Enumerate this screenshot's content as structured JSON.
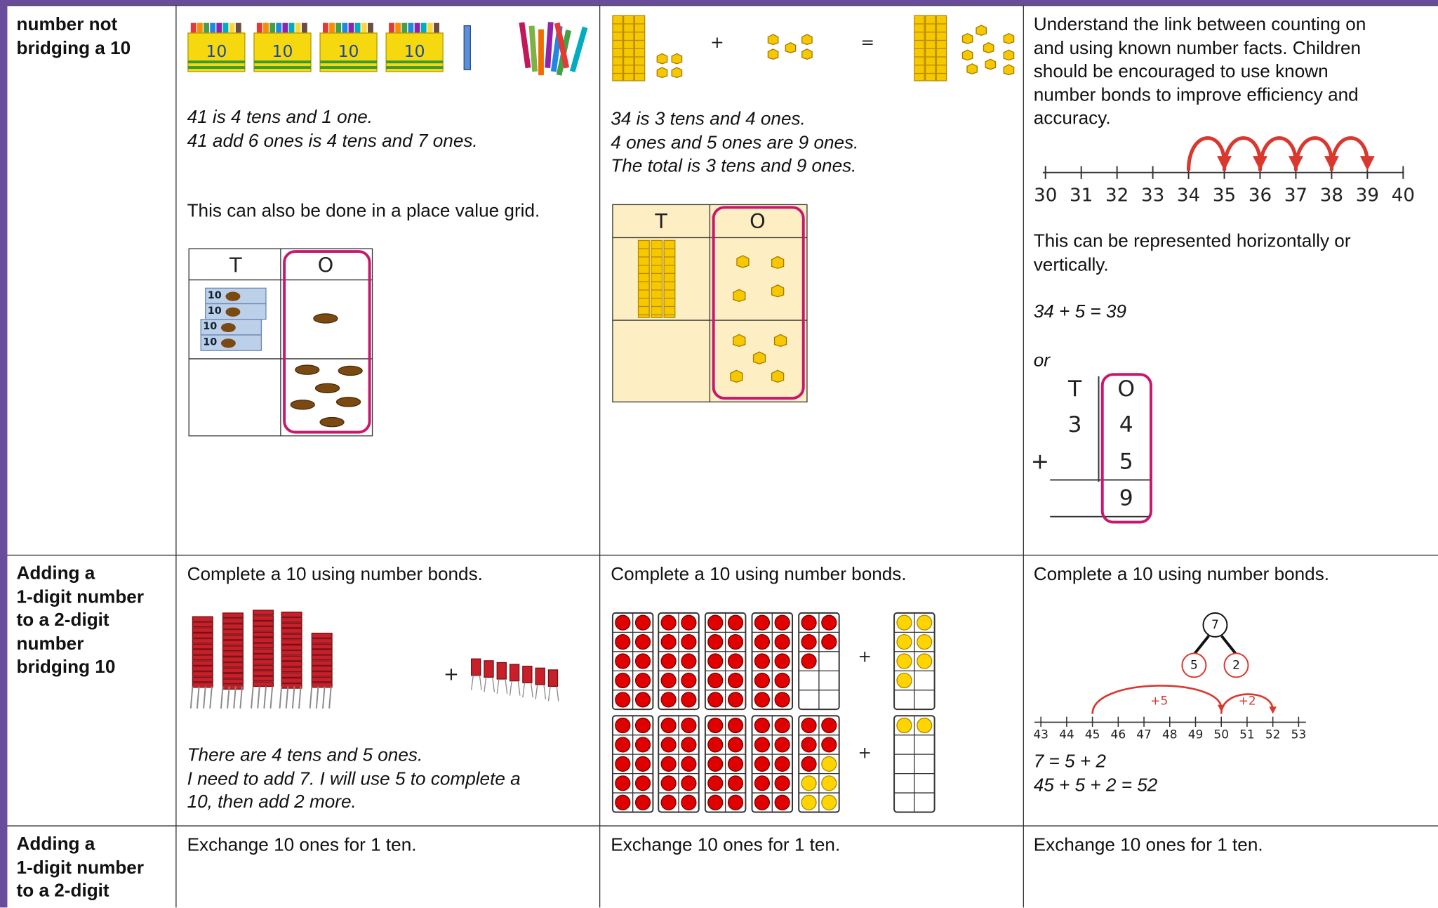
{
  "table": {
    "rows": [
      {
        "heading": [
          "number not",
          "bridging a 10"
        ],
        "cells": [
          {
            "crayon_labels": [
              "10",
              "10",
              "10",
              "10"
            ],
            "lines": [
              "41 is 4 tens and 1 one.",
              "41 add 6 ones is 4 tens and 7 ones."
            ],
            "note": "This can also be done in a place value grid.",
            "grid_headers": [
              "T",
              "O"
            ],
            "box_labels": [
              "10",
              "10",
              "10",
              "10"
            ]
          },
          {
            "operators": [
              "+",
              "="
            ],
            "lines": [
              "34 is 3 tens and 4 ones.",
              "4 ones and 5 ones are 9 ones.",
              "The total is 3 tens and 9 ones."
            ],
            "grid_headers": [
              "T",
              "O"
            ]
          },
          {
            "text": [
              "Understand the link between counting on",
              "and using known number facts. Children",
              "should be encouraged to use known",
              "number bonds to improve efficiency and",
              "accuracy."
            ],
            "number_line": [
              "30",
              "31",
              "32",
              "33",
              "34",
              "35",
              "36",
              "37",
              "38",
              "39",
              "40"
            ],
            "note": [
              "This can be represented horizontally or",
              "vertically."
            ],
            "equation": "34 + 5 = 39",
            "or": "or",
            "column": {
              "headers": [
                "T",
                "O"
              ],
              "tens": "3",
              "sign": "+",
              "ones": [
                "4",
                "5",
                "9"
              ]
            }
          }
        ]
      },
      {
        "heading": [
          "Adding a",
          "1-digit number",
          "to a 2-digit",
          "number",
          "bridging 10"
        ],
        "cells": [
          {
            "text": "Complete a 10 using number bonds.",
            "operator": "+",
            "lines": [
              "There are 4 tens and 5 ones.",
              "I need to add 7. I will use 5 to complete a",
              "10, then add 2 more."
            ]
          },
          {
            "text": "Complete a 10 using number bonds.",
            "operators": [
              "+",
              "+"
            ]
          },
          {
            "text": "Complete a 10 using number bonds.",
            "tree": [
              "7",
              "5",
              "2"
            ],
            "jumps": [
              "+5",
              "+2"
            ],
            "number_line": [
              "43",
              "44",
              "45",
              "46",
              "47",
              "48",
              "49",
              "50",
              "51",
              "52",
              "53"
            ],
            "equations": [
              "7 = 5 + 2",
              "45 + 5 + 2 = 52"
            ]
          }
        ]
      },
      {
        "heading": [
          "Adding a",
          "1-digit number",
          "to a 2-digit"
        ],
        "cells": [
          {
            "text": "Exchange 10 ones for 1 ten."
          },
          {
            "text": "Exchange 10 ones for 1 ten."
          },
          {
            "text": "Exchange 10 ones for 1 ten."
          }
        ]
      }
    ]
  }
}
